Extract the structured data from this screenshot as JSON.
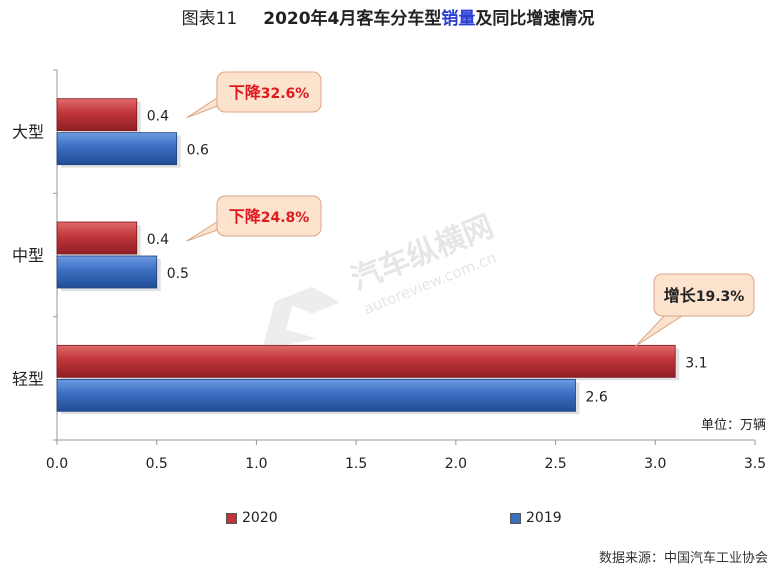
{
  "title": {
    "figure_no": "图表11",
    "prefix": "2020年4月客车分车型",
    "highlight": "销量",
    "suffix": "及同比增速情况"
  },
  "unit_label": "单位：万辆",
  "source": "数据来源：中国汽车工业协会",
  "watermark": {
    "cn": "汽车纵横网",
    "en": "autoreview.com.cn"
  },
  "colors": {
    "series_2020": "#c0353a",
    "series_2019": "#3a6fc1",
    "callout_bg": "#fbe3cd",
    "decline_text": "#e0191f",
    "growth_text": "#222222"
  },
  "chart_data": {
    "type": "bar",
    "orientation": "horizontal",
    "categories": [
      "大型",
      "中型",
      "轻型"
    ],
    "series": [
      {
        "name": "2020",
        "values": [
          0.4,
          0.4,
          3.1
        ]
      },
      {
        "name": "2019",
        "values": [
          0.6,
          0.5,
          2.6
        ]
      }
    ],
    "xlim": [
      0,
      3.5
    ],
    "xticks": [
      "0.0",
      "0.5",
      "1.0",
      "1.5",
      "2.0",
      "2.5",
      "3.0",
      "3.5"
    ],
    "legend_position": "bottom",
    "grid": false,
    "annotations": [
      {
        "category": "大型",
        "label": "下降",
        "value": "32.6%",
        "kind": "decline"
      },
      {
        "category": "中型",
        "label": "下降",
        "value": "24.8%",
        "kind": "decline"
      },
      {
        "category": "轻型",
        "label": "增长",
        "value": "19.3%",
        "kind": "growth"
      }
    ]
  }
}
